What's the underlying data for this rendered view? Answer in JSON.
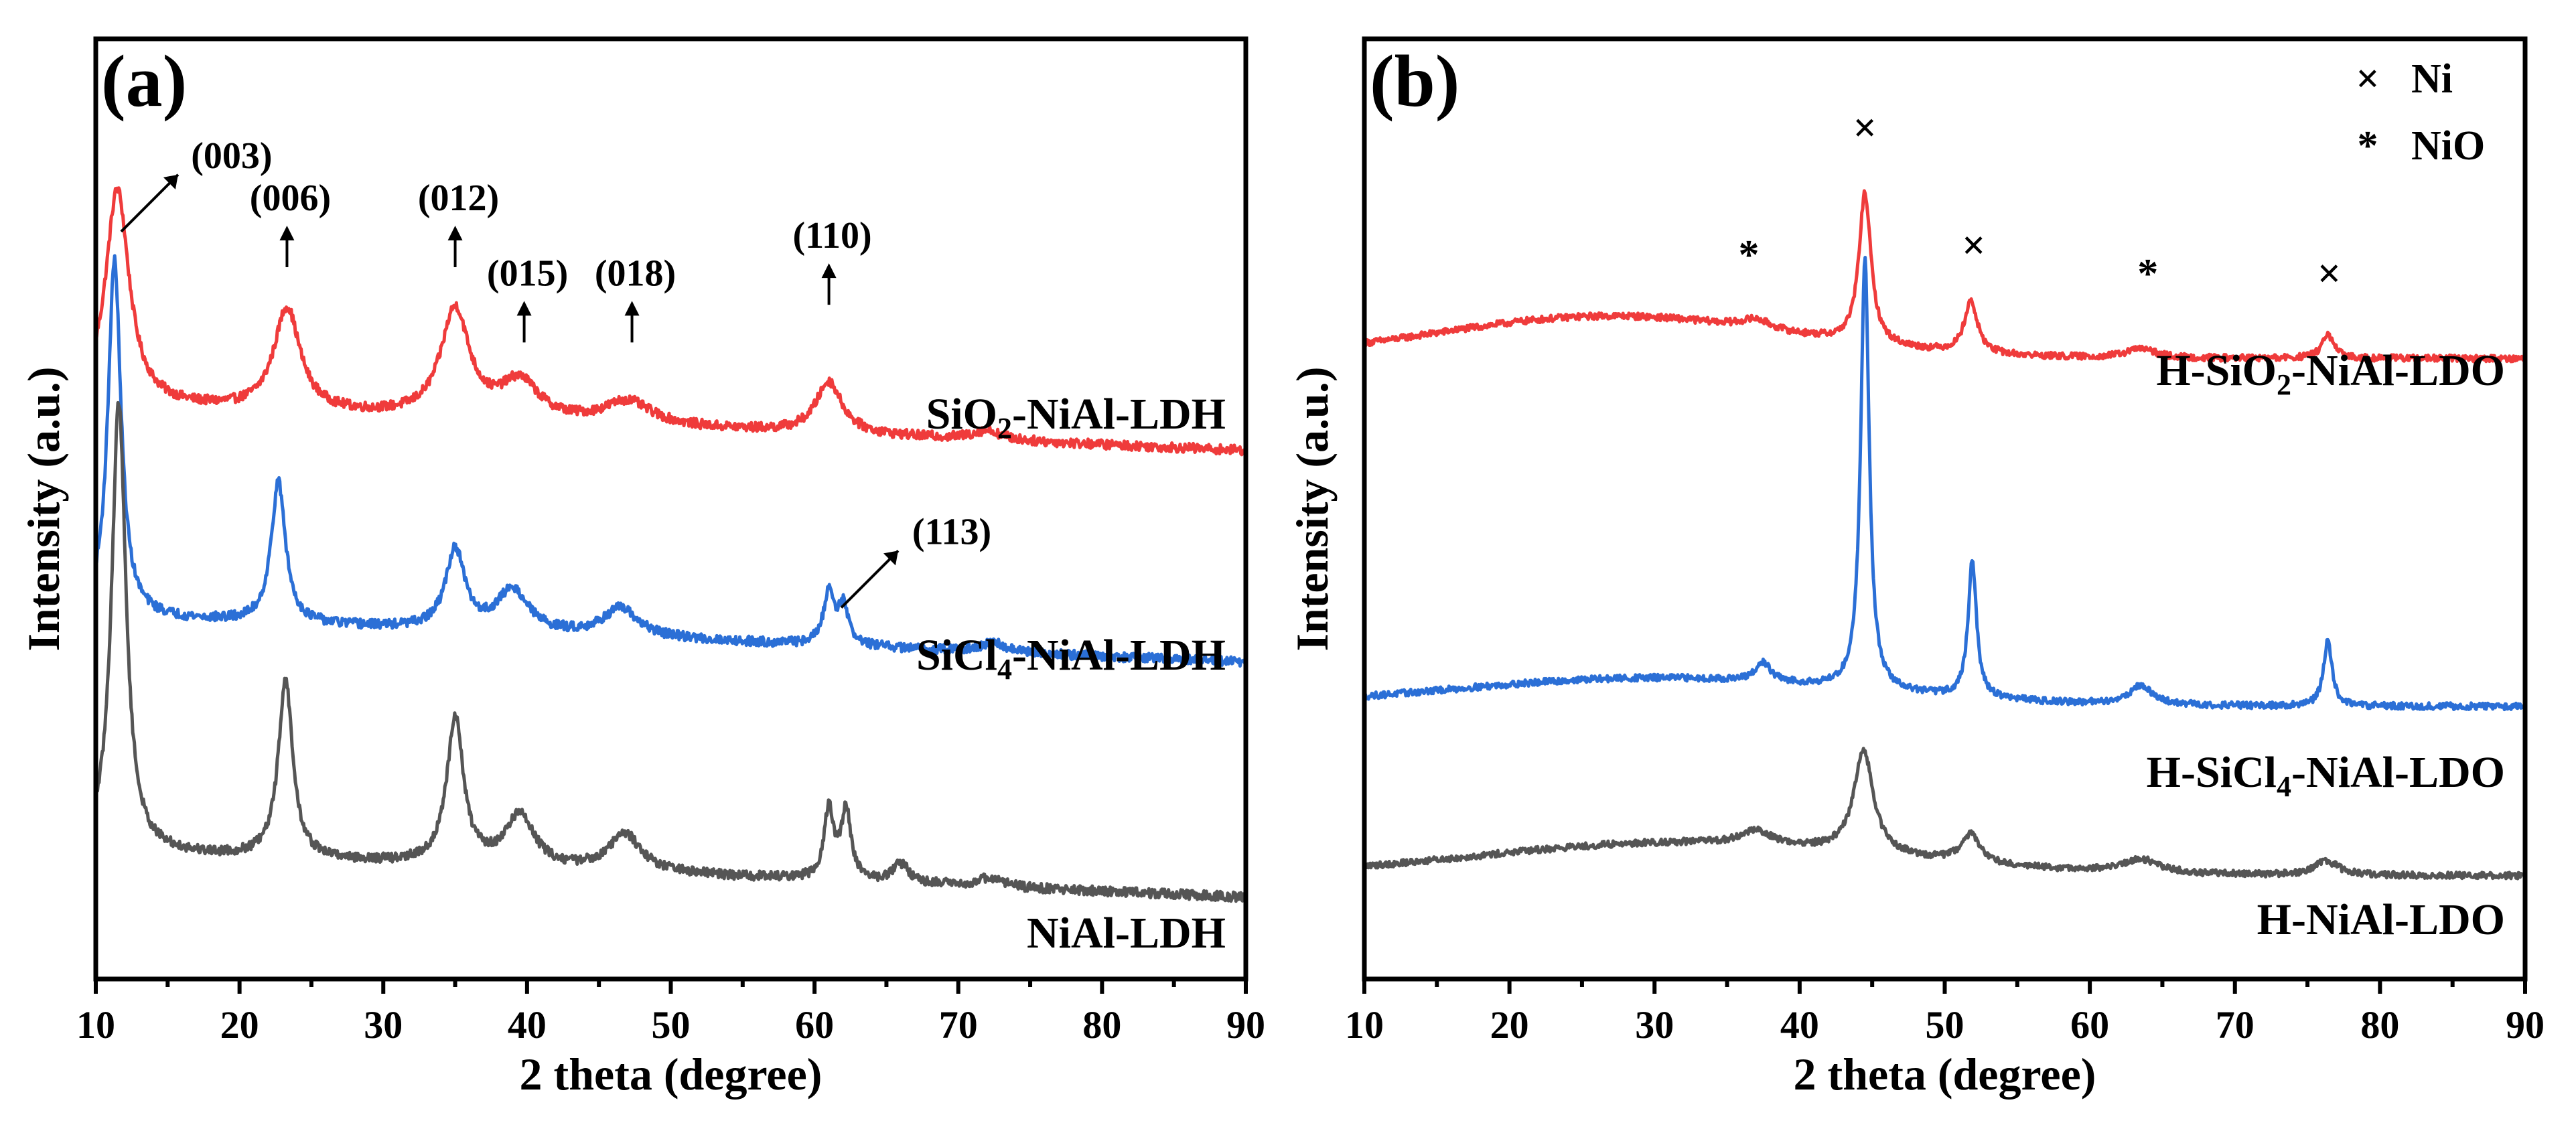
{
  "chart_data": [
    {
      "type": "line",
      "panel": "(a)",
      "xlabel": "2 theta (degree)",
      "ylabel": "Intensity (a.u.)",
      "xlim": [
        10,
        90
      ],
      "xticks": [
        "10",
        "20",
        "30",
        "40",
        "50",
        "60",
        "70",
        "80",
        "90"
      ],
      "ylim": [
        0,
        10
      ],
      "series": [
        {
          "name": "SiO2-NiAl-LDH",
          "label_main": "SiO",
          "label_sub": "2",
          "label_rest": "-NiAl-LDH",
          "color": "#ef3b3b",
          "baseline": 6.1,
          "noise": 0.05,
          "peaks": [
            [
              11.5,
              2.3,
              1.0
            ],
            [
              23.3,
              1.1,
              1.1
            ],
            [
              35.0,
              1.15,
              1.2
            ],
            [
              39.5,
              0.4,
              1.6
            ],
            [
              47.0,
              0.25,
              2.0
            ],
            [
              61.0,
              0.55,
              1.1
            ],
            [
              72.0,
              0.1,
              1.2
            ]
          ]
        },
        {
          "name": "SiCl4-NiAl-LDH",
          "label_main": "SiCl",
          "label_sub": "4",
          "label_rest": "-NiAl-LDH",
          "color": "#2b6fd6",
          "baseline": 3.85,
          "noise": 0.05,
          "peaks": [
            [
              11.3,
              3.8,
              0.55
            ],
            [
              22.7,
              1.5,
              0.6
            ],
            [
              35.0,
              0.85,
              0.8
            ],
            [
              39.0,
              0.45,
              1.3
            ],
            [
              46.5,
              0.3,
              1.5
            ],
            [
              61.0,
              0.55,
              0.45
            ],
            [
              62.0,
              0.4,
              0.45
            ],
            [
              72.5,
              0.1,
              1.0
            ]
          ]
        },
        {
          "name": "NiAl-LDH",
          "label_main": "NiAl-LDH",
          "label_sub": "",
          "label_rest": "",
          "color": "#555555",
          "baseline": 1.35,
          "noise": 0.05,
          "peaks": [
            [
              11.6,
              4.8,
              0.6
            ],
            [
              23.2,
              1.9,
              0.6
            ],
            [
              35.0,
              1.55,
              0.7
            ],
            [
              39.5,
              0.55,
              1.2
            ],
            [
              46.8,
              0.4,
              1.4
            ],
            [
              61.0,
              0.75,
              0.4
            ],
            [
              62.2,
              0.75,
              0.4
            ],
            [
              66.0,
              0.2,
              0.7
            ],
            [
              72.2,
              0.1,
              1.0
            ]
          ]
        }
      ],
      "annotations": [
        {
          "text": "(003)",
          "x": 11.5,
          "y": 8.4
        },
        {
          "text": "(006)",
          "x": 23.3,
          "y": 7.5
        },
        {
          "text": "(012)",
          "x": 35.0,
          "y": 7.5
        },
        {
          "text": "(015)",
          "x": 39.8,
          "y": 6.7
        },
        {
          "text": "(018)",
          "x": 47.3,
          "y": 6.7
        },
        {
          "text": "(110)",
          "x": 61.0,
          "y": 7.1
        },
        {
          "text": "(113)",
          "x": 61.8,
          "y": 4.4
        }
      ]
    },
    {
      "type": "line",
      "panel": "(b)",
      "xlabel": "2 theta (degree)",
      "ylabel": "Intensity (a.u.)",
      "xlim": [
        10,
        90
      ],
      "xticks": [
        "10",
        "20",
        "30",
        "40",
        "50",
        "60",
        "70",
        "80",
        "90"
      ],
      "ylim": [
        0,
        10
      ],
      "legend": [
        {
          "symbol": "×",
          "label": "Ni"
        },
        {
          "symbol": "*",
          "label": "NiO"
        }
      ],
      "series": [
        {
          "name": "H-SiO2-NiAl-LDO",
          "label_main": "H-SiO",
          "label_sub": "2",
          "label_rest": "-NiAl-LDO",
          "color": "#ef3b3b",
          "baseline": 6.6,
          "noise": 0.035,
          "hump": [
            27.0,
            0.45,
            12.0
          ],
          "peaks": [
            [
              37.0,
              0.1,
              1.2
            ],
            [
              44.5,
              1.6,
              0.5
            ],
            [
              51.8,
              0.55,
              0.55
            ],
            [
              63.5,
              0.1,
              1.2
            ],
            [
              76.4,
              0.25,
              0.5
            ]
          ]
        },
        {
          "name": "H-SiCl4-NiAl-LDO",
          "label_main": "H-SiCl",
          "label_sub": "4",
          "label_rest": "-NiAl-LDO",
          "color": "#2b6fd6",
          "baseline": 2.9,
          "noise": 0.035,
          "hump": [
            30.0,
            0.3,
            14.0
          ],
          "peaks": [
            [
              37.5,
              0.2,
              0.6
            ],
            [
              44.5,
              4.6,
              0.35
            ],
            [
              51.9,
              1.45,
              0.35
            ],
            [
              63.5,
              0.2,
              1.0
            ],
            [
              76.4,
              0.7,
              0.35
            ]
          ]
        },
        {
          "name": "H-NiAl-LDO",
          "label_main": "H-NiAl-LDO",
          "label_sub": "",
          "label_rest": "",
          "color": "#555555",
          "baseline": 1.1,
          "noise": 0.035,
          "hump": [
            32.0,
            0.35,
            14.0
          ],
          "peaks": [
            [
              37.0,
              0.15,
              1.2
            ],
            [
              44.4,
              1.1,
              0.8
            ],
            [
              51.8,
              0.3,
              0.8
            ],
            [
              63.5,
              0.15,
              1.5
            ],
            [
              76.3,
              0.15,
              1.0
            ]
          ]
        }
      ],
      "markers": [
        {
          "symbol": "*",
          "x": 36.5,
          "y": 7.7
        },
        {
          "symbol": "×",
          "x": 44.5,
          "y": 9.05
        },
        {
          "symbol": "×",
          "x": 52.0,
          "y": 7.8
        },
        {
          "symbol": "*",
          "x": 64.0,
          "y": 7.5
        },
        {
          "symbol": "×",
          "x": 76.5,
          "y": 7.5
        }
      ]
    }
  ]
}
